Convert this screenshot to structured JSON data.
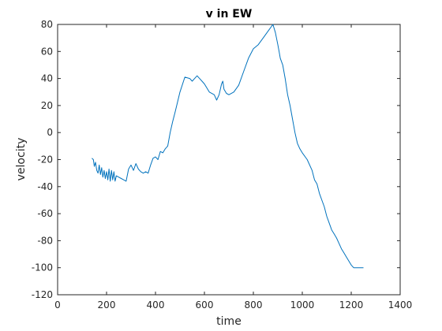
{
  "chart_data": {
    "type": "line",
    "title": "v in EW",
    "xlabel": "time",
    "ylabel": "velocity",
    "xlim": [
      0,
      1400
    ],
    "ylim": [
      -120,
      80
    ],
    "xticks": [
      0,
      200,
      400,
      600,
      800,
      1000,
      1200,
      1400
    ],
    "yticks": [
      -120,
      -100,
      -80,
      -60,
      -40,
      -20,
      0,
      20,
      40,
      60,
      80
    ],
    "grid": false,
    "line_color": "#0072BD",
    "series": [
      {
        "name": "",
        "x": [
          140,
          146,
          150,
          155,
          160,
          165,
          170,
          175,
          180,
          185,
          190,
          195,
          200,
          205,
          210,
          215,
          220,
          225,
          230,
          235,
          240,
          250,
          260,
          270,
          280,
          290,
          300,
          310,
          320,
          330,
          340,
          350,
          360,
          370,
          380,
          390,
          400,
          410,
          420,
          430,
          440,
          450,
          460,
          470,
          480,
          500,
          520,
          540,
          550,
          560,
          570,
          580,
          590,
          600,
          620,
          640,
          650,
          660,
          670,
          675,
          680,
          690,
          700,
          720,
          740,
          760,
          780,
          800,
          820,
          840,
          860,
          880,
          890,
          900,
          905,
          910,
          920,
          930,
          940,
          950,
          960,
          970,
          980,
          990,
          1000,
          1020,
          1040,
          1050,
          1060,
          1070,
          1080,
          1090,
          1100,
          1110,
          1120,
          1130,
          1140,
          1150,
          1160,
          1170,
          1180,
          1190,
          1200,
          1210,
          1220,
          1230,
          1240,
          1250
        ],
        "y": [
          -19,
          -20,
          -25,
          -22,
          -28,
          -30,
          -24,
          -31,
          -26,
          -33,
          -28,
          -34,
          -29,
          -35,
          -27,
          -36,
          -28,
          -35,
          -29,
          -36,
          -32,
          -33,
          -34,
          -35,
          -36,
          -27,
          -24,
          -28,
          -23,
          -27,
          -29,
          -30,
          -29,
          -30,
          -24,
          -19,
          -18,
          -20,
          -14,
          -15,
          -12,
          -10,
          0,
          8,
          15,
          30,
          41,
          40,
          38,
          40,
          42,
          40,
          38,
          36,
          30,
          28,
          24,
          28,
          36,
          38,
          32,
          29,
          28,
          30,
          35,
          45,
          55,
          62,
          65,
          70,
          75,
          80,
          74,
          65,
          60,
          55,
          50,
          40,
          28,
          20,
          10,
          0,
          -8,
          -12,
          -15,
          -20,
          -28,
          -35,
          -38,
          -45,
          -50,
          -55,
          -62,
          -67,
          -72,
          -75,
          -78,
          -82,
          -86,
          -89,
          -92,
          -95,
          -98,
          -100,
          -100,
          -100,
          -100,
          -100
        ]
      }
    ]
  }
}
